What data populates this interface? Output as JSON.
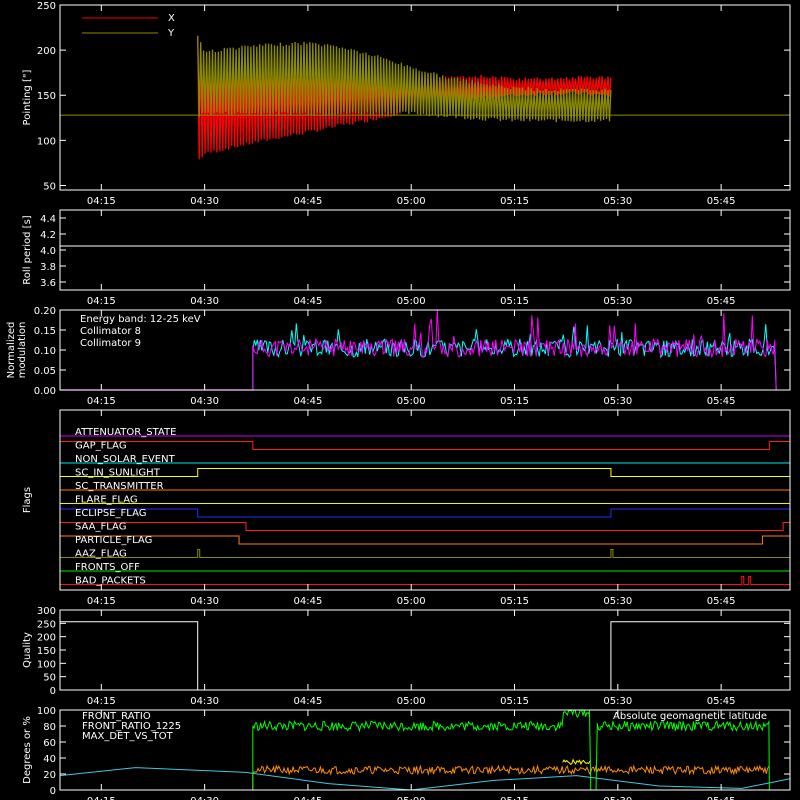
{
  "colors": {
    "background": "#000000",
    "axes": "#ffffff",
    "x_pointing": "#ff0000",
    "y_pointing": "#8b8b00",
    "collimator8": "#00ffff",
    "collimator9": "#ff00ff",
    "front_ratio": "#ffff00",
    "front_ratio_1225": "#00ff00",
    "max_det_vs_tot": "#ff8c00",
    "geomag_lat": "#40c8e0"
  },
  "time_ticks": [
    "04:15",
    "04:30",
    "04:45",
    "05:00",
    "05:15",
    "05:30",
    "05:45"
  ],
  "chart_data": [
    {
      "type": "line",
      "name": "pointing",
      "ylabel": "Pointing [\"]",
      "ylim": [
        45,
        250
      ],
      "yticks": [
        "50",
        "100",
        "150",
        "200",
        "250"
      ],
      "xlim": [
        "04:09",
        "05:55"
      ],
      "legend": {
        "placement": "top-left",
        "entries": [
          "X",
          "Y"
        ]
      },
      "reference_line_y": 128,
      "series": [
        {
          "name": "X",
          "x": [
            "04:29",
            "04:30",
            "04:35",
            "04:40",
            "04:45",
            "04:50",
            "04:55",
            "05:00",
            "05:05",
            "05:10",
            "05:15",
            "05:20",
            "05:25",
            "05:29"
          ],
          "upper": [
            218,
            170,
            172,
            172,
            171,
            170,
            170,
            170,
            173,
            173,
            170,
            170,
            172,
            172
          ],
          "lower": [
            75,
            83,
            92,
            100,
            107,
            115,
            122,
            131,
            138,
            145,
            148,
            150,
            150,
            147
          ]
        },
        {
          "name": "Y",
          "x": [
            "04:29",
            "04:30",
            "04:35",
            "04:40",
            "04:45",
            "04:50",
            "04:55",
            "05:00",
            "05:05",
            "05:10",
            "05:15",
            "05:20",
            "05:25",
            "05:29"
          ],
          "upper": [
            218,
            200,
            205,
            208,
            210,
            205,
            195,
            183,
            172,
            165,
            160,
            158,
            158,
            158
          ],
          "lower": [
            125,
            128,
            128,
            128,
            128,
            128,
            128,
            128,
            125,
            122,
            120,
            120,
            120,
            120
          ]
        }
      ]
    },
    {
      "type": "line",
      "name": "roll-period",
      "ylabel": "Roll period [s]",
      "ylim": [
        3.5,
        4.5
      ],
      "yticks": [
        "3.6",
        "3.8",
        "4.0",
        "4.2",
        "4.4"
      ],
      "series": [
        {
          "name": "",
          "x": [
            "04:09",
            "05:55"
          ],
          "values": [
            4.05,
            4.05
          ]
        }
      ]
    },
    {
      "type": "line",
      "name": "modulation",
      "ylabel": "Normalized modulation",
      "ylim": [
        0,
        0.2
      ],
      "yticks": [
        "0.00",
        "0.05",
        "0.10",
        "0.15",
        "0.20"
      ],
      "annotation": "Energy band: 12-25 keV",
      "legend": {
        "placement": "top-left",
        "entries": [
          "Collimator 8",
          "Collimator 9"
        ]
      },
      "series": [
        {
          "name": "Collimator 8",
          "x_start": "04:37",
          "x_end": "05:53",
          "typical": 0.105,
          "min": 0.075,
          "max": 0.17
        },
        {
          "name": "Collimator 9",
          "x_start": "04:37",
          "x_end": "05:53",
          "typical": 0.105,
          "min": 0.08,
          "max": 0.2
        }
      ]
    },
    {
      "type": "line",
      "name": "flags",
      "ylabel": "Flags",
      "flags": [
        {
          "label": "ATTENUATOR_STATE",
          "color": "#c800ff",
          "high_intervals": []
        },
        {
          "label": "GAP_FLAG",
          "color": "#ff2010",
          "high_intervals": [
            [
              "04:09",
              "04:37"
            ],
            [
              "05:52",
              "05:55"
            ]
          ]
        },
        {
          "label": "NON_SOLAR_EVENT",
          "color": "#00e8e8",
          "high_intervals": []
        },
        {
          "label": "SC_IN_SUNLIGHT",
          "color": "#ffff00",
          "high_intervals": [
            [
              "04:29",
              "05:29"
            ]
          ]
        },
        {
          "label": "SC_TRANSMITTER",
          "color": "#ff7800",
          "high_intervals": []
        },
        {
          "label": "FLARE_FLAG",
          "color": "#f0f000",
          "high_intervals": []
        },
        {
          "label": "ECLIPSE_FLAG",
          "color": "#2030ff",
          "high_intervals": [
            [
              "04:09",
              "04:29"
            ],
            [
              "05:29",
              "05:55"
            ]
          ]
        },
        {
          "label": "SAA_FLAG",
          "color": "#ff2020",
          "high_intervals": [
            [
              "04:09",
              "04:36"
            ],
            [
              "05:54",
              "05:55"
            ]
          ]
        },
        {
          "label": "PARTICLE_FLAG",
          "color": "#ff7a20",
          "high_intervals": [
            [
              "04:09",
              "04:35"
            ],
            [
              "05:51",
              "05:55"
            ]
          ]
        },
        {
          "label": "AAZ_FLAG",
          "color": "#8b8b00",
          "high_intervals": [
            [
              "04:29",
              "04:29"
            ],
            [
              "05:29",
              "05:29"
            ]
          ]
        },
        {
          "label": "FRONTS_OFF",
          "color": "#00e800",
          "high_intervals": []
        },
        {
          "label": "BAD_PACKETS",
          "color": "#ff1010",
          "high_intervals": [
            [
              "05:48",
              "05:48"
            ],
            [
              "05:49",
              "05:49"
            ]
          ]
        }
      ]
    },
    {
      "type": "line",
      "name": "quality",
      "ylabel": "Quality",
      "ylim": [
        0,
        300
      ],
      "yticks": [
        "0",
        "50",
        "100",
        "150",
        "200",
        "250",
        "300"
      ],
      "series": [
        {
          "name": "",
          "x": [
            "04:09",
            "04:29",
            "04:29",
            "05:29",
            "05:29",
            "05:55"
          ],
          "values": [
            256,
            256,
            0,
            0,
            256,
            256
          ]
        }
      ]
    },
    {
      "type": "line",
      "name": "ratios",
      "ylabel": "Degrees or %",
      "ylim": [
        0,
        100
      ],
      "yticks": [
        "0",
        "20",
        "40",
        "60",
        "80",
        "100"
      ],
      "legend": {
        "placement": "top-left",
        "entries": [
          "FRONT_RATIO",
          "FRONT_RATIO_1225",
          "MAX_DET_VS_TOT"
        ]
      },
      "annotation": "Absolute geomagnetic latitude",
      "series": [
        {
          "name": "FRONT_RATIO",
          "x": [
            "05:22",
            "05:24",
            "05:26"
          ],
          "values": [
            35,
            35,
            35
          ]
        },
        {
          "name": "FRONT_RATIO_1225",
          "x": [
            "04:37",
            "05:00",
            "05:20",
            "05:22",
            "05:26",
            "05:27",
            "05:52"
          ],
          "values": [
            80,
            80,
            80,
            97,
            97,
            0,
            80
          ]
        },
        {
          "name": "MAX_DET_VS_TOT",
          "x": [
            "04:37",
            "05:52"
          ],
          "values": [
            25,
            25
          ]
        },
        {
          "name": "Absolute geomagnetic latitude",
          "x": [
            "04:09",
            "04:20",
            "04:36",
            "04:48",
            "05:00",
            "05:12",
            "05:24",
            "05:36",
            "05:48",
            "05:55"
          ],
          "values": [
            18,
            28,
            22,
            8,
            0,
            12,
            18,
            5,
            2,
            14
          ]
        }
      ]
    }
  ]
}
